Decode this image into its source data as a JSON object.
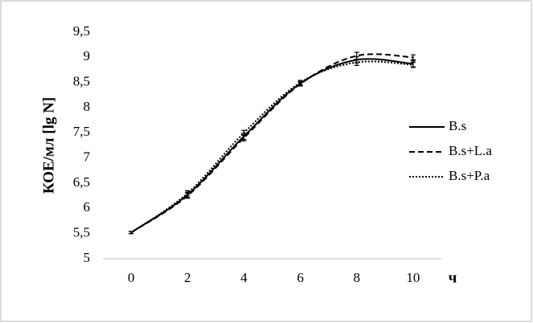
{
  "chart_data": {
    "type": "line",
    "y_label": "КОЕ/мл [lg N]",
    "x_label": "ч",
    "x": [
      0,
      2,
      4,
      6,
      8,
      10
    ],
    "xlim": [
      -1,
      11
    ],
    "xticks": [
      0,
      2,
      4,
      6,
      8,
      10
    ],
    "ylim": [
      5,
      9.5
    ],
    "yticks": [
      5,
      {
        "value": 5.5,
        "label": "5,5"
      },
      6,
      {
        "value": 6.5,
        "label": "6,5"
      },
      7,
      {
        "value": 7.5,
        "label": "7,5"
      },
      8,
      {
        "value": 8.5,
        "label": "8,5"
      },
      9,
      {
        "value": 9.5,
        "label": "9,5"
      }
    ],
    "grid": false,
    "legend": "right",
    "series": [
      {
        "name": "B.s",
        "color": "#000000",
        "dash": "solid",
        "values": [
          5.52,
          6.27,
          7.43,
          8.48,
          8.95,
          8.87
        ],
        "errors": [
          0.02,
          0.05,
          0.06,
          0.04,
          0.06,
          0.06
        ]
      },
      {
        "name": "B.s+L.a",
        "color": "#000000",
        "dash": "dashed",
        "values": [
          5.52,
          6.25,
          7.4,
          8.47,
          9.03,
          9.0
        ],
        "errors": [
          0.02,
          0.05,
          0.06,
          0.04,
          0.07,
          0.05
        ]
      },
      {
        "name": "B.s+P.a",
        "color": "#000000",
        "dash": "dotted",
        "values": [
          5.52,
          6.3,
          7.5,
          8.5,
          8.9,
          8.85
        ],
        "errors": [
          0.02,
          0.05,
          0.05,
          0.04,
          0.06,
          0.05
        ]
      }
    ]
  }
}
